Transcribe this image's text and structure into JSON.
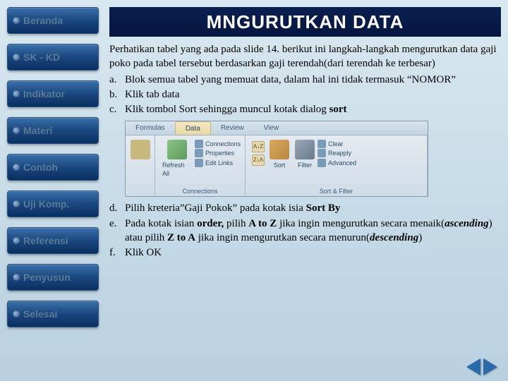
{
  "sidebar": {
    "items": [
      {
        "label": "Beranda"
      },
      {
        "label": "SK - KD"
      },
      {
        "label": "Indikator"
      },
      {
        "label": "Materi"
      },
      {
        "label": "Contoh"
      },
      {
        "label": "Uji Komp."
      },
      {
        "label": "Referensi"
      },
      {
        "label": "Penyusun"
      },
      {
        "label": "Selesai"
      }
    ]
  },
  "title": "MNGURUTKAN DATA",
  "intro": "Perhatikan tabel yang ada pada slide 14. berikut ini langkah-langkah mengurutkan data gaji poko pada tabel tersebut berdasarkan gaji terendah(dari terendah ke terbesar)",
  "steps_top": [
    {
      "letter": "a.",
      "html": "Blok semua tabel yang memuat data, dalam hal ini tidak termasuk “NOMOR”"
    },
    {
      "letter": "b.",
      "html": "Klik tab data"
    },
    {
      "letter": "c.",
      "html": "Klik tombol Sort sehingga muncul kotak dialog <b>sort</b>"
    }
  ],
  "steps_bottom": [
    {
      "letter": "d.",
      "html": "Pilih kreteria”Gaji Pokok” pada kotak isia <b>Sort By</b>"
    },
    {
      "letter": "e.",
      "html": "Pada kotak isian <b>order,</b> pilih <b>A to Z</b> jika ingin mengurutkan secara menaik(<b><i>ascending</i></b>) atau pilih <b>Z to A</b> jika ingin mengurutkan secara menurun(<b><i>descending</i></b>)"
    },
    {
      "letter": "f.",
      "html": "Klik OK"
    }
  ],
  "ribbon": {
    "tabs": [
      {
        "label": "Formulas",
        "active": false
      },
      {
        "label": "Data",
        "active": true
      },
      {
        "label": "Review",
        "active": false
      },
      {
        "label": "View",
        "active": false
      }
    ],
    "groups": {
      "connections": {
        "refresh": "Refresh All",
        "items": [
          "Connections",
          "Properties",
          "Edit Links"
        ],
        "label": "Connections"
      },
      "sortfilter": {
        "sort": "Sort",
        "filter": "Filter",
        "right_items": [
          "Clear",
          "Reapply",
          "Advanced"
        ],
        "label": "Sort & Filter"
      }
    }
  },
  "colors": {
    "title_bg": "#051540",
    "nav_bg": "#1a4780",
    "body_bg": "#c8dce8",
    "arrow": "#2a6aa8"
  }
}
